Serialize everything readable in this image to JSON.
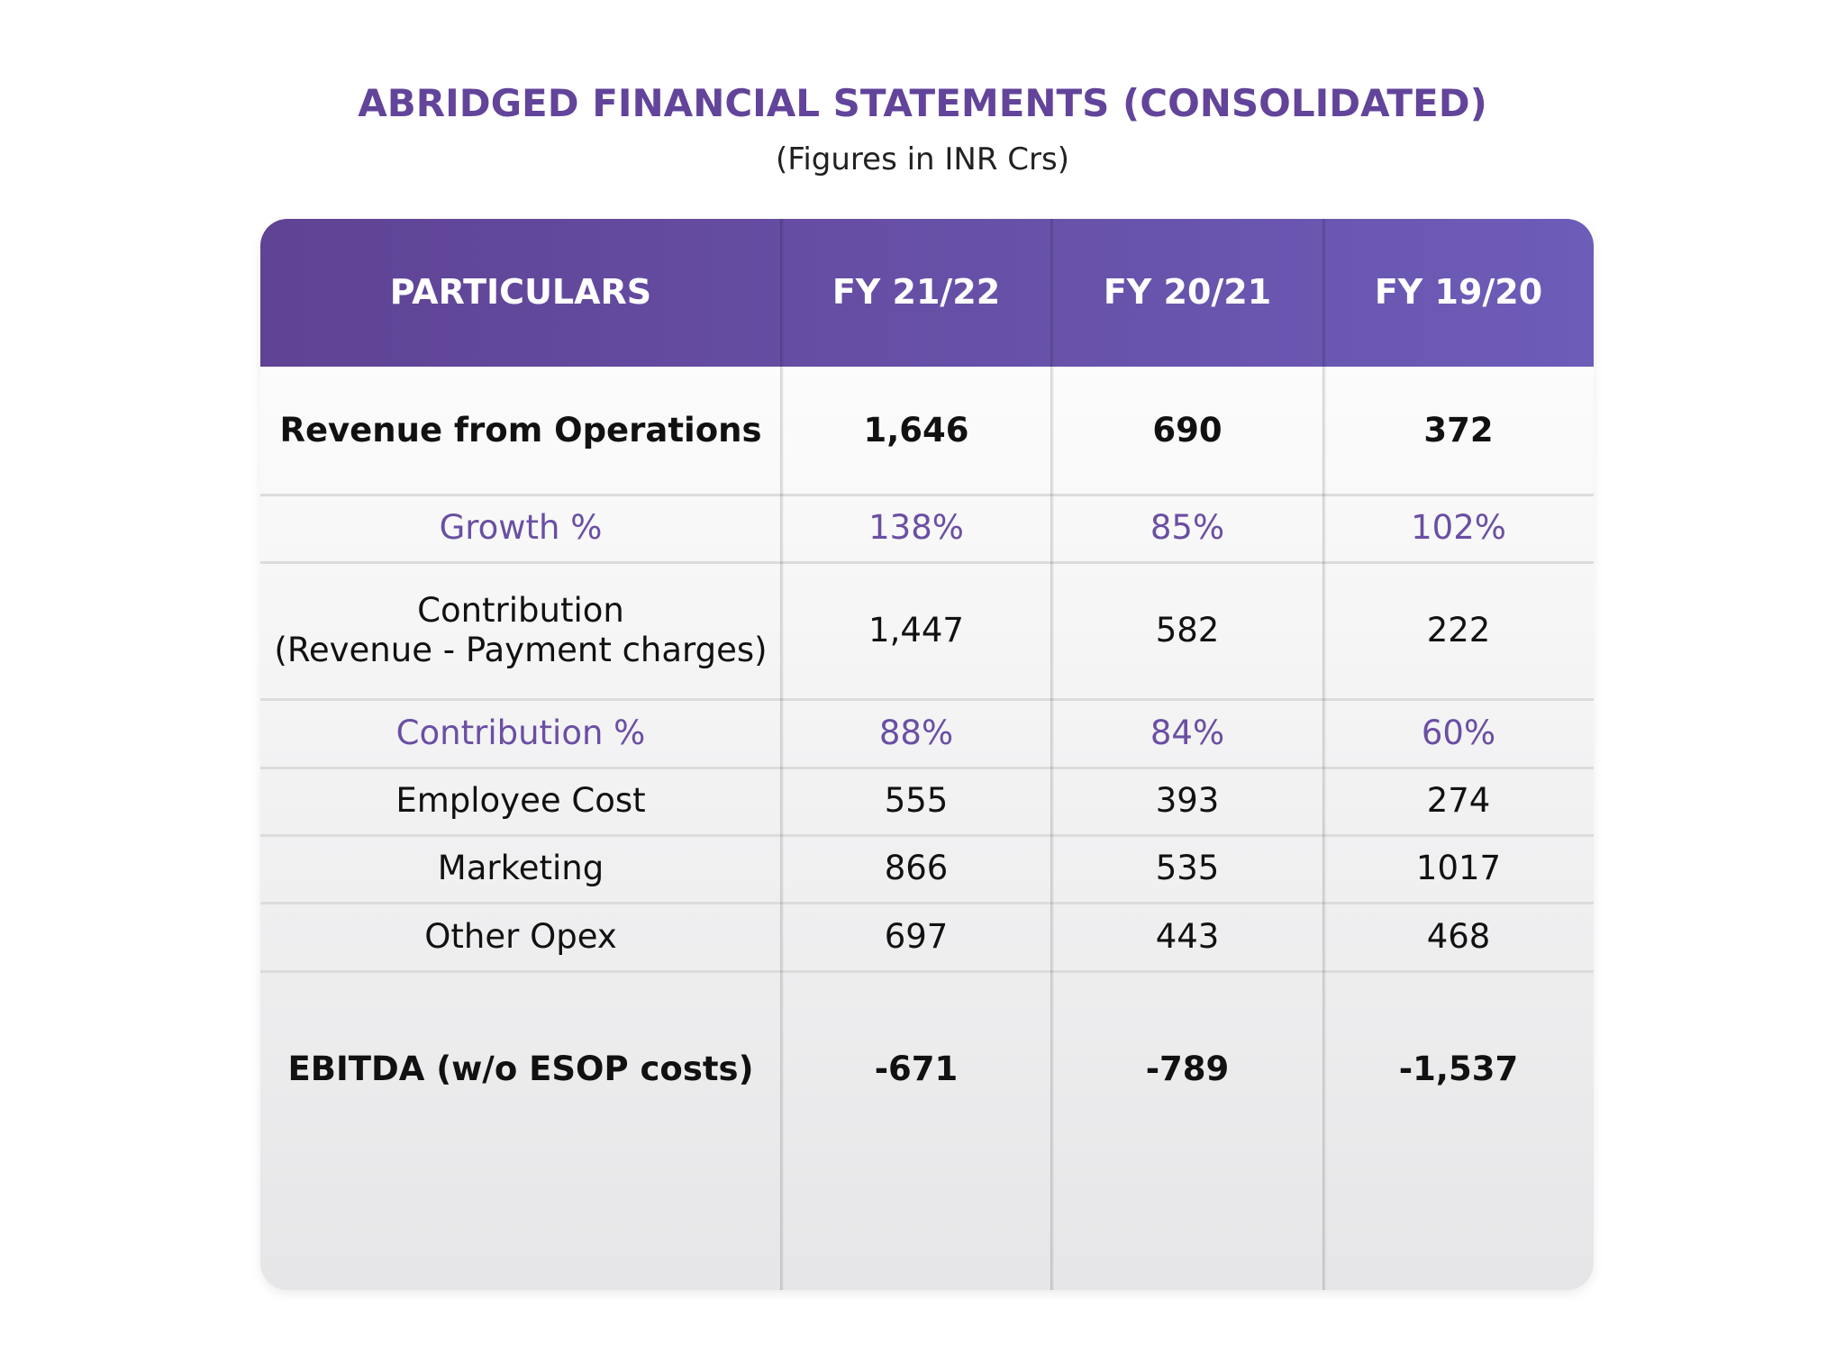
{
  "header": {
    "title": "ABRIDGED FINANCIAL STATEMENTS (CONSOLIDATED)",
    "subtitle": "(Figures in INR Crs)"
  },
  "table": {
    "columns": [
      "PARTICULARS",
      "FY 21/22",
      "FY 20/21",
      "FY 19/20"
    ],
    "rows": [
      [
        "Revenue from Operations",
        "1,646",
        "690",
        "372"
      ],
      [
        "Growth %",
        "138%",
        "85%",
        "102%"
      ],
      [
        [
          "Contribution",
          "(Revenue - Payment charges)"
        ],
        "1,447",
        "582",
        "222"
      ],
      [
        "Contribution %",
        "88%",
        "84%",
        "60%"
      ],
      [
        "Employee Cost",
        "555",
        "393",
        "274"
      ],
      [
        "Marketing",
        "866",
        "535",
        "1017"
      ],
      [
        "Other Opex",
        "697",
        "443",
        "468"
      ],
      [
        "EBITDA (w/o ESOP costs)",
        "-671",
        "-789",
        "-1,537"
      ]
    ]
  }
}
